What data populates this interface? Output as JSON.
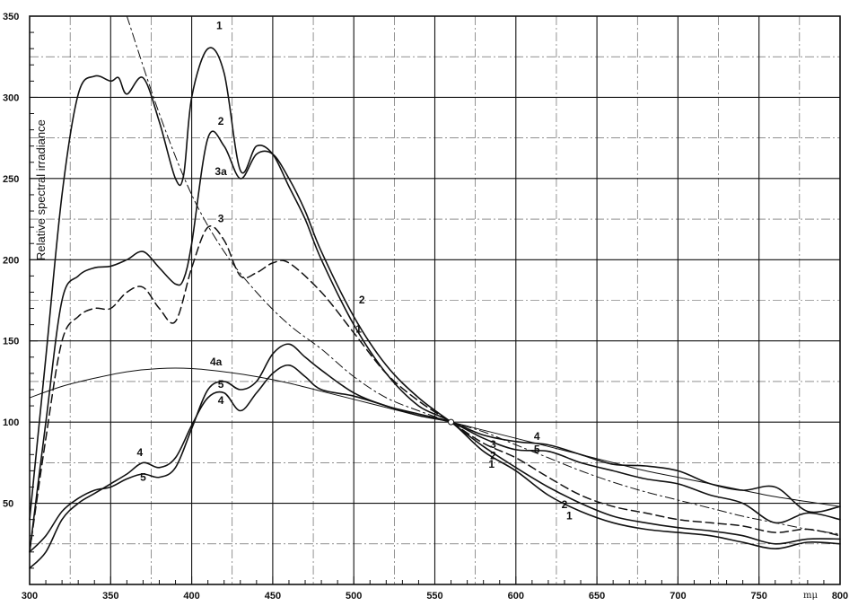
{
  "chart_data": {
    "type": "line",
    "title": "",
    "xlabel": "",
    "x_unit": "mμ",
    "ylabel": "Relative spectral irradiance",
    "xlim": [
      300,
      800
    ],
    "ylim": [
      0,
      350
    ],
    "x_ticks": [
      300,
      350,
      400,
      450,
      500,
      550,
      600,
      650,
      700,
      750,
      800
    ],
    "y_ticks": [
      50,
      100,
      150,
      200,
      250,
      300,
      350
    ],
    "grid": true,
    "legend": "none",
    "series": [
      {
        "name": "1",
        "style": "solid",
        "x": [
          300,
          310,
          320,
          330,
          340,
          350,
          355,
          360,
          370,
          380,
          390,
          395,
          400,
          410,
          420,
          430,
          440,
          450,
          460,
          470,
          480,
          500,
          520,
          540,
          560,
          580,
          600,
          620,
          640,
          660,
          680,
          700,
          720,
          740,
          760,
          780,
          800
        ],
        "y": [
          40,
          140,
          240,
          302,
          313,
          310,
          312,
          302,
          312,
          285,
          250,
          252,
          300,
          330,
          315,
          255,
          270,
          265,
          245,
          225,
          200,
          160,
          130,
          110,
          100,
          82,
          70,
          55,
          45,
          38,
          34,
          32,
          30,
          26,
          22,
          26,
          25
        ]
      },
      {
        "name": "2",
        "style": "solid",
        "x": [
          300,
          310,
          320,
          330,
          340,
          350,
          360,
          370,
          380,
          390,
          395,
          400,
          410,
          420,
          430,
          440,
          450,
          460,
          470,
          480,
          500,
          520,
          540,
          560,
          580,
          600,
          620,
          640,
          660,
          680,
          700,
          720,
          740,
          760,
          780,
          800
        ],
        "y": [
          20,
          100,
          175,
          190,
          195,
          196,
          200,
          205,
          195,
          185,
          188,
          210,
          275,
          270,
          250,
          265,
          265,
          250,
          230,
          205,
          165,
          135,
          115,
          100,
          85,
          72,
          60,
          50,
          42,
          38,
          35,
          33,
          30,
          25,
          28,
          28
        ]
      },
      {
        "name": "3",
        "style": "dashed",
        "x": [
          300,
          310,
          320,
          330,
          340,
          350,
          360,
          370,
          380,
          390,
          400,
          410,
          420,
          430,
          440,
          450,
          460,
          480,
          500,
          520,
          540,
          560,
          580,
          600,
          620,
          640,
          660,
          680,
          700,
          720,
          740,
          760,
          780,
          800
        ],
        "y": [
          20,
          90,
          150,
          165,
          170,
          170,
          180,
          183,
          170,
          162,
          195,
          220,
          212,
          190,
          192,
          198,
          198,
          180,
          155,
          130,
          113,
          100,
          87,
          78,
          66,
          55,
          48,
          44,
          40,
          38,
          36,
          32,
          34,
          30
        ]
      },
      {
        "name": "3a",
        "style": "dash-dot",
        "x": [
          360,
          380,
          400,
          420,
          440,
          460,
          480,
          500,
          520,
          540,
          560,
          580,
          600,
          620,
          640,
          660,
          680,
          700,
          720,
          740,
          760,
          780,
          800
        ],
        "y": [
          350,
          290,
          240,
          205,
          180,
          160,
          145,
          128,
          115,
          107,
          100,
          94,
          86,
          78,
          70,
          63,
          57,
          52,
          47,
          42,
          38,
          34,
          31
        ]
      },
      {
        "name": "4",
        "style": "solid",
        "x": [
          300,
          310,
          320,
          330,
          340,
          350,
          360,
          370,
          380,
          390,
          400,
          410,
          420,
          430,
          440,
          450,
          460,
          470,
          480,
          500,
          520,
          540,
          560,
          580,
          600,
          620,
          640,
          660,
          680,
          700,
          720,
          740,
          760,
          780,
          800
        ],
        "y": [
          10,
          20,
          40,
          50,
          56,
          62,
          68,
          75,
          72,
          78,
          98,
          115,
          118,
          107,
          118,
          130,
          135,
          128,
          120,
          116,
          110,
          104,
          100,
          92,
          88,
          86,
          80,
          74,
          73,
          70,
          62,
          58,
          60,
          45,
          48
        ]
      },
      {
        "name": "5",
        "style": "solid",
        "x": [
          300,
          310,
          320,
          330,
          340,
          350,
          360,
          370,
          380,
          390,
          400,
          410,
          420,
          430,
          440,
          450,
          460,
          470,
          480,
          500,
          520,
          540,
          560,
          580,
          600,
          620,
          640,
          660,
          680,
          700,
          720,
          740,
          760,
          780,
          800
        ],
        "y": [
          20,
          30,
          45,
          53,
          58,
          60,
          65,
          68,
          66,
          72,
          96,
          120,
          125,
          120,
          125,
          142,
          148,
          140,
          132,
          118,
          110,
          105,
          100,
          90,
          83,
          82,
          75,
          70,
          65,
          62,
          55,
          50,
          38,
          44,
          40
        ]
      },
      {
        "name": "4a",
        "style": "solid-thin",
        "x": [
          300,
          320,
          340,
          360,
          380,
          400,
          420,
          440,
          460,
          480,
          500,
          520,
          540,
          560,
          580,
          600,
          620,
          640,
          660,
          680,
          700,
          720,
          740,
          760,
          780,
          800
        ],
        "y": [
          115,
          122,
          127,
          131,
          133,
          133,
          131,
          128,
          124,
          119,
          114,
          109,
          104,
          100,
          95,
          90,
          85,
          80,
          75,
          70,
          66,
          62,
          58,
          54,
          51,
          48
        ]
      }
    ],
    "annotations": [
      {
        "text": "1",
        "x": 417,
        "y": 342
      },
      {
        "text": "2",
        "x": 418,
        "y": 283
      },
      {
        "text": "3a",
        "x": 418,
        "y": 252
      },
      {
        "text": "3",
        "x": 418,
        "y": 223
      },
      {
        "text": "4a",
        "x": 415,
        "y": 135
      },
      {
        "text": "5",
        "x": 418,
        "y": 121
      },
      {
        "text": "4",
        "x": 418,
        "y": 111
      },
      {
        "text": "4",
        "x": 368,
        "y": 79
      },
      {
        "text": "5",
        "x": 370,
        "y": 64
      },
      {
        "text": "2",
        "x": 505,
        "y": 173
      },
      {
        "text": "1",
        "x": 503,
        "y": 155
      },
      {
        "text": "4",
        "x": 613,
        "y": 89
      },
      {
        "text": "3",
        "x": 586,
        "y": 84
      },
      {
        "text": "5",
        "x": 613,
        "y": 81
      },
      {
        "text": "2",
        "x": 586,
        "y": 77
      },
      {
        "text": "1",
        "x": 585,
        "y": 72
      },
      {
        "text": "2",
        "x": 630,
        "y": 47
      },
      {
        "text": "1",
        "x": 633,
        "y": 40
      }
    ]
  }
}
